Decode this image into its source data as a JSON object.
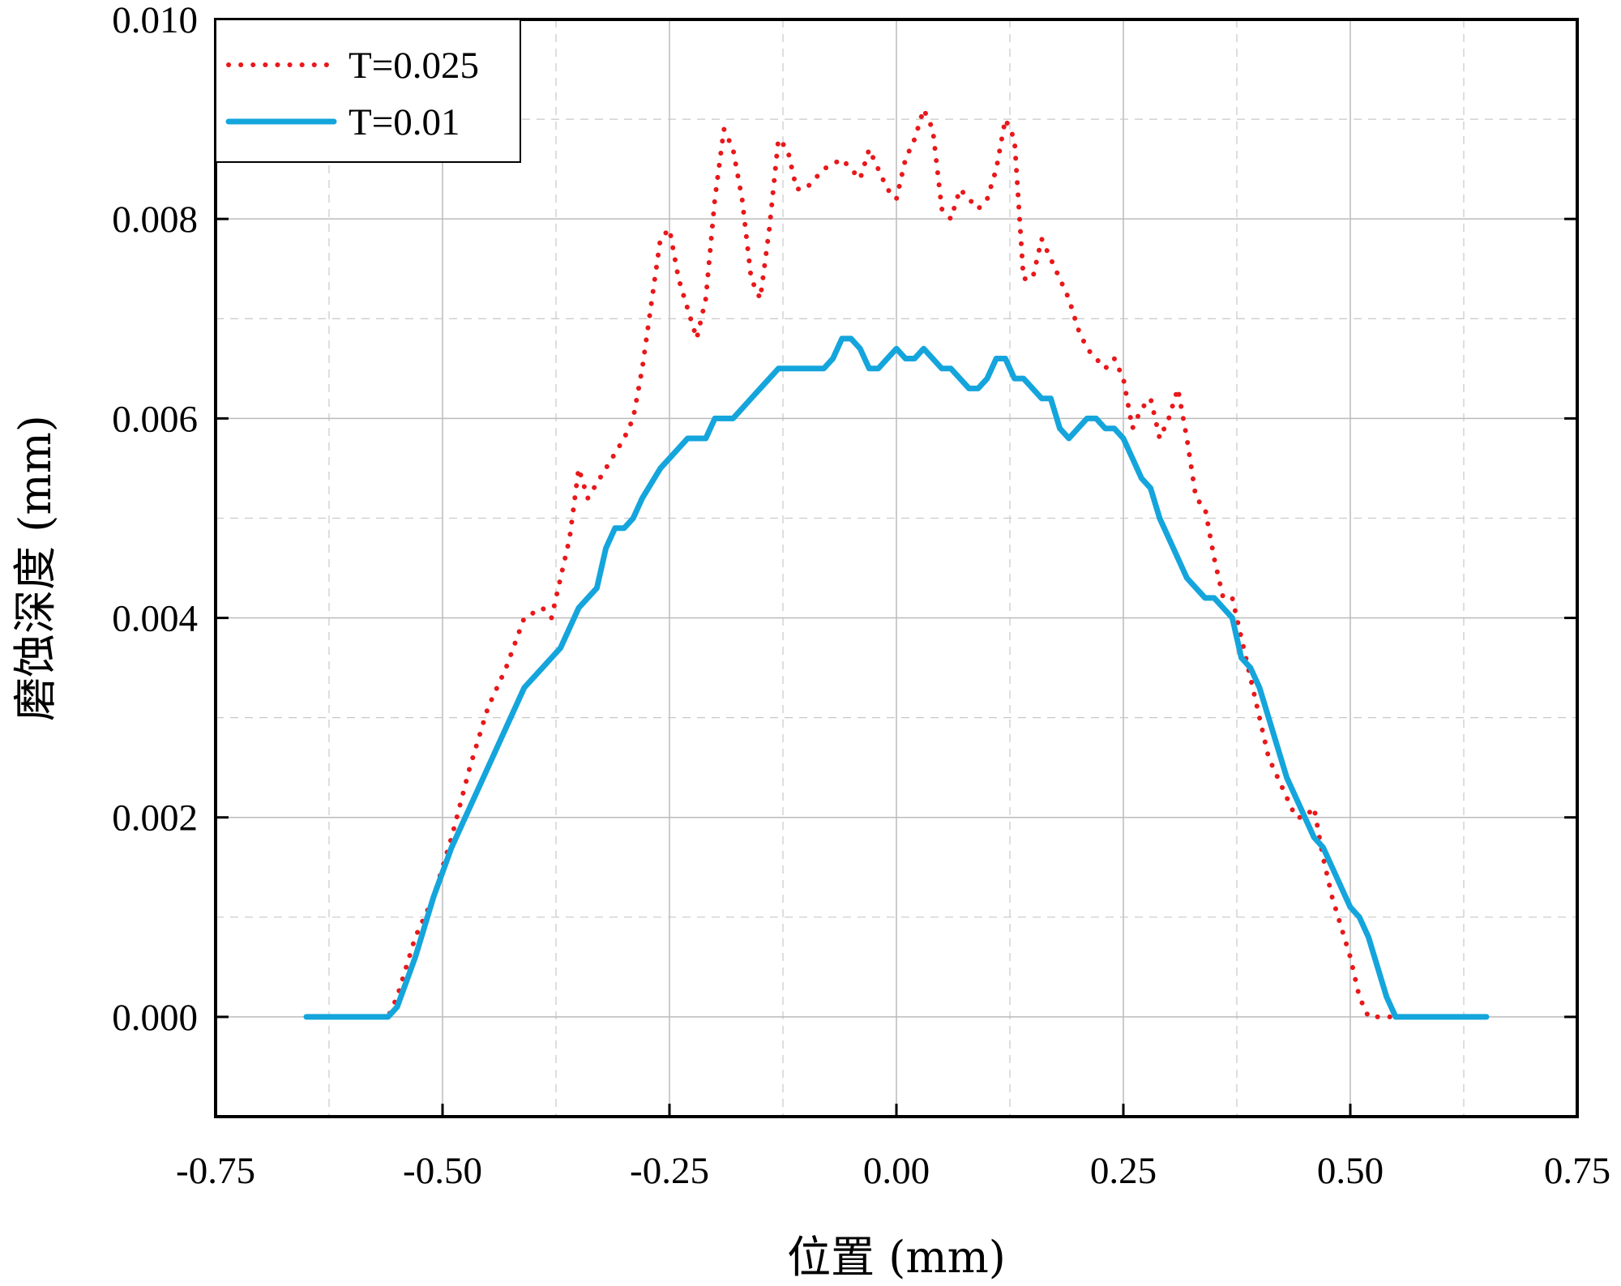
{
  "chart_data": {
    "type": "line",
    "title": "",
    "xlabel": "位置 (mm)",
    "ylabel": "磨蚀深度 (mm)",
    "xlim": [
      -0.75,
      0.75
    ],
    "ylim": [
      -0.001,
      0.01
    ],
    "x_ticks": [
      -0.75,
      -0.5,
      -0.25,
      0.0,
      0.25,
      0.5,
      0.75
    ],
    "x_tick_labels": [
      "-0.75",
      "-0.50",
      "-0.25",
      "0.00",
      "0.25",
      "0.50",
      "0.75"
    ],
    "y_ticks": [
      0.0,
      0.002,
      0.004,
      0.006,
      0.008,
      0.01
    ],
    "y_tick_labels": [
      "0.000",
      "0.002",
      "0.004",
      "0.006",
      "0.008",
      "0.010"
    ],
    "grid": true,
    "legend_position": "top-left",
    "series": [
      {
        "name": "T=0.025",
        "color": "#e8181b",
        "style": "dotted",
        "x": [
          -0.65,
          -0.56,
          -0.55,
          -0.53,
          -0.51,
          -0.49,
          -0.47,
          -0.45,
          -0.43,
          -0.41,
          -0.39,
          -0.38,
          -0.36,
          -0.35,
          -0.34,
          -0.32,
          -0.3,
          -0.29,
          -0.28,
          -0.26,
          -0.25,
          -0.24,
          -0.22,
          -0.21,
          -0.2,
          -0.19,
          -0.18,
          -0.17,
          -0.16,
          -0.15,
          -0.14,
          -0.13,
          -0.12,
          -0.11,
          -0.1,
          -0.09,
          -0.08,
          -0.06,
          -0.05,
          -0.04,
          -0.03,
          -0.02,
          -0.01,
          0.0,
          0.01,
          0.02,
          0.03,
          0.04,
          0.05,
          0.06,
          0.07,
          0.08,
          0.09,
          0.1,
          0.11,
          0.12,
          0.13,
          0.14,
          0.15,
          0.16,
          0.17,
          0.18,
          0.19,
          0.2,
          0.21,
          0.22,
          0.23,
          0.24,
          0.25,
          0.26,
          0.27,
          0.28,
          0.29,
          0.3,
          0.31,
          0.32,
          0.33,
          0.34,
          0.35,
          0.36,
          0.37,
          0.38,
          0.39,
          0.4,
          0.41,
          0.42,
          0.43,
          0.44,
          0.45,
          0.46,
          0.47,
          0.48,
          0.49,
          0.5,
          0.51,
          0.52,
          0.53,
          0.54,
          0.55,
          0.56,
          0.65
        ],
        "y": [
          0.0,
          0.0,
          0.0002,
          0.0008,
          0.0012,
          0.0018,
          0.0025,
          0.0031,
          0.0035,
          0.004,
          0.0041,
          0.004,
          0.0048,
          0.0055,
          0.0052,
          0.0055,
          0.0058,
          0.006,
          0.0065,
          0.0078,
          0.0079,
          0.0074,
          0.0068,
          0.0072,
          0.0082,
          0.0089,
          0.0087,
          0.0082,
          0.0074,
          0.0072,
          0.0079,
          0.0088,
          0.0087,
          0.0083,
          0.0083,
          0.0084,
          0.0085,
          0.0086,
          0.0085,
          0.0084,
          0.0087,
          0.0085,
          0.0083,
          0.0082,
          0.0086,
          0.0088,
          0.0091,
          0.0089,
          0.0081,
          0.008,
          0.0083,
          0.0082,
          0.0081,
          0.0082,
          0.0085,
          0.009,
          0.0088,
          0.0074,
          0.0074,
          0.0078,
          0.0076,
          0.0074,
          0.0072,
          0.0069,
          0.0067,
          0.0066,
          0.0065,
          0.0066,
          0.0064,
          0.0059,
          0.0061,
          0.0062,
          0.0058,
          0.006,
          0.0063,
          0.0058,
          0.0052,
          0.0051,
          0.0046,
          0.0042,
          0.0042,
          0.0038,
          0.0034,
          0.003,
          0.0026,
          0.0024,
          0.0022,
          0.002,
          0.002,
          0.0021,
          0.0016,
          0.0012,
          0.0009,
          0.0006,
          0.0002,
          0.0,
          0.0,
          0.0,
          0.0,
          0.0,
          0.0
        ]
      },
      {
        "name": "T=0.01",
        "color": "#14a5dc",
        "style": "solid",
        "x": [
          -0.65,
          -0.57,
          -0.56,
          -0.55,
          -0.53,
          -0.51,
          -0.49,
          -0.47,
          -0.45,
          -0.43,
          -0.41,
          -0.39,
          -0.38,
          -0.37,
          -0.35,
          -0.34,
          -0.33,
          -0.32,
          -0.31,
          -0.3,
          -0.29,
          -0.28,
          -0.26,
          -0.25,
          -0.24,
          -0.23,
          -0.22,
          -0.21,
          -0.2,
          -0.19,
          -0.18,
          -0.17,
          -0.16,
          -0.15,
          -0.14,
          -0.13,
          -0.12,
          -0.11,
          -0.1,
          -0.09,
          -0.08,
          -0.07,
          -0.06,
          -0.05,
          -0.04,
          -0.03,
          -0.02,
          -0.01,
          0.0,
          0.01,
          0.02,
          0.03,
          0.04,
          0.05,
          0.06,
          0.07,
          0.08,
          0.09,
          0.1,
          0.11,
          0.12,
          0.13,
          0.14,
          0.15,
          0.16,
          0.17,
          0.18,
          0.19,
          0.2,
          0.21,
          0.22,
          0.23,
          0.24,
          0.25,
          0.26,
          0.27,
          0.28,
          0.29,
          0.3,
          0.31,
          0.32,
          0.33,
          0.34,
          0.35,
          0.36,
          0.37,
          0.38,
          0.39,
          0.4,
          0.41,
          0.42,
          0.43,
          0.44,
          0.45,
          0.46,
          0.47,
          0.48,
          0.49,
          0.5,
          0.51,
          0.52,
          0.53,
          0.54,
          0.55,
          0.56,
          0.57,
          0.65
        ],
        "y": [
          0.0,
          0.0,
          0.0,
          0.0001,
          0.0006,
          0.0012,
          0.0017,
          0.0021,
          0.0025,
          0.0029,
          0.0033,
          0.0035,
          0.0036,
          0.0037,
          0.0041,
          0.0042,
          0.0043,
          0.0047,
          0.0049,
          0.0049,
          0.005,
          0.0052,
          0.0055,
          0.0056,
          0.0057,
          0.0058,
          0.0058,
          0.0058,
          0.006,
          0.006,
          0.006,
          0.0061,
          0.0062,
          0.0063,
          0.0064,
          0.0065,
          0.0065,
          0.0065,
          0.0065,
          0.0065,
          0.0065,
          0.0066,
          0.0068,
          0.0068,
          0.0067,
          0.0065,
          0.0065,
          0.0066,
          0.0067,
          0.0066,
          0.0066,
          0.0067,
          0.0066,
          0.0065,
          0.0065,
          0.0064,
          0.0063,
          0.0063,
          0.0064,
          0.0066,
          0.0066,
          0.0064,
          0.0064,
          0.0063,
          0.0062,
          0.0062,
          0.0059,
          0.0058,
          0.0059,
          0.006,
          0.006,
          0.0059,
          0.0059,
          0.0058,
          0.0056,
          0.0054,
          0.0053,
          0.005,
          0.0048,
          0.0046,
          0.0044,
          0.0043,
          0.0042,
          0.0042,
          0.0041,
          0.004,
          0.0036,
          0.0035,
          0.0033,
          0.003,
          0.0027,
          0.0024,
          0.0022,
          0.002,
          0.0018,
          0.0017,
          0.0015,
          0.0013,
          0.0011,
          0.001,
          0.0008,
          0.0005,
          0.0002,
          0.0,
          0.0,
          0.0,
          0.0
        ]
      }
    ]
  }
}
